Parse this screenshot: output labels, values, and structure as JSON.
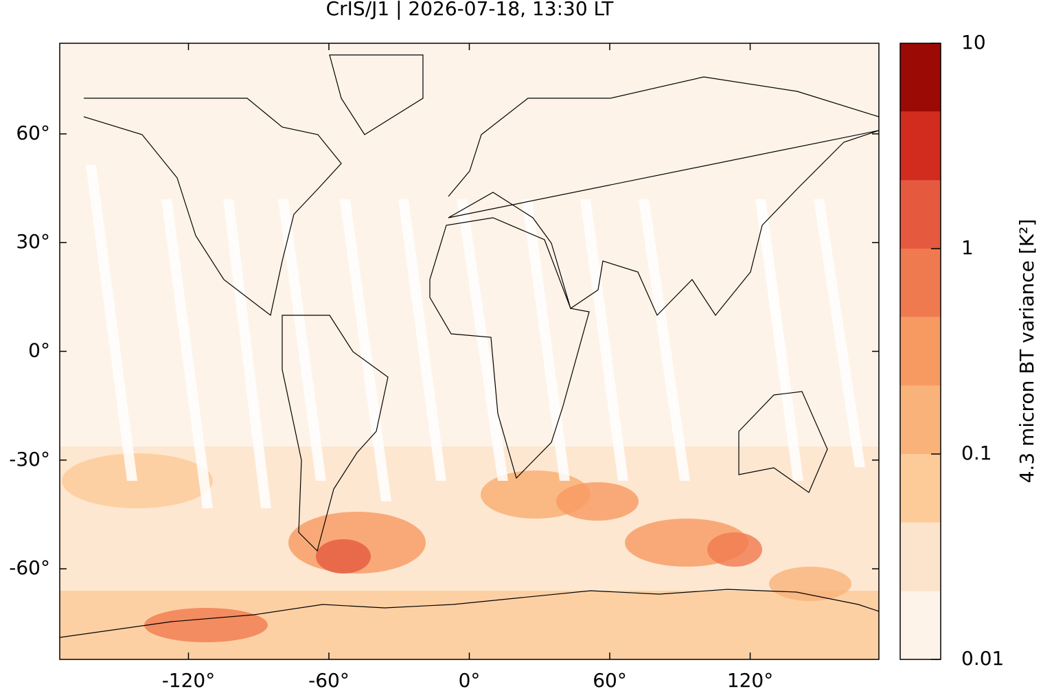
{
  "chart_data": {
    "type": "map",
    "title": "CrIS/J1 | 2026-07-18, 13:30 LT",
    "xlim": [
      -175,
      175
    ],
    "ylim": [
      -85,
      85
    ],
    "xticks": [
      {
        "value": -120,
        "label": "-120°"
      },
      {
        "value": -60,
        "label": "-60°"
      },
      {
        "value": 0,
        "label": "0°"
      },
      {
        "value": 60,
        "label": "60°"
      },
      {
        "value": 120,
        "label": "120°"
      }
    ],
    "yticks": [
      {
        "value": -60,
        "label": "-60°"
      },
      {
        "value": -30,
        "label": "-30°"
      },
      {
        "value": 0,
        "label": "0°"
      },
      {
        "value": 30,
        "label": "30°"
      },
      {
        "value": 60,
        "label": "60°"
      }
    ],
    "colorbar": {
      "label": "4.3 micron BT variance [K²]",
      "log_scale": true,
      "lim": [
        0.01,
        10
      ],
      "ticks": [
        0.01,
        0.1,
        1,
        10
      ],
      "levels": [
        0.01,
        0.0215,
        0.0464,
        0.1,
        0.215,
        0.464,
        1,
        2.15,
        4.64,
        10
      ],
      "colors": [
        "#fdf3e8",
        "#fce3cb",
        "#fccb98",
        "#f9b37a",
        "#f79a62",
        "#f07a4f",
        "#e55a3e",
        "#d12c1e",
        "#9b0a05"
      ]
    }
  }
}
